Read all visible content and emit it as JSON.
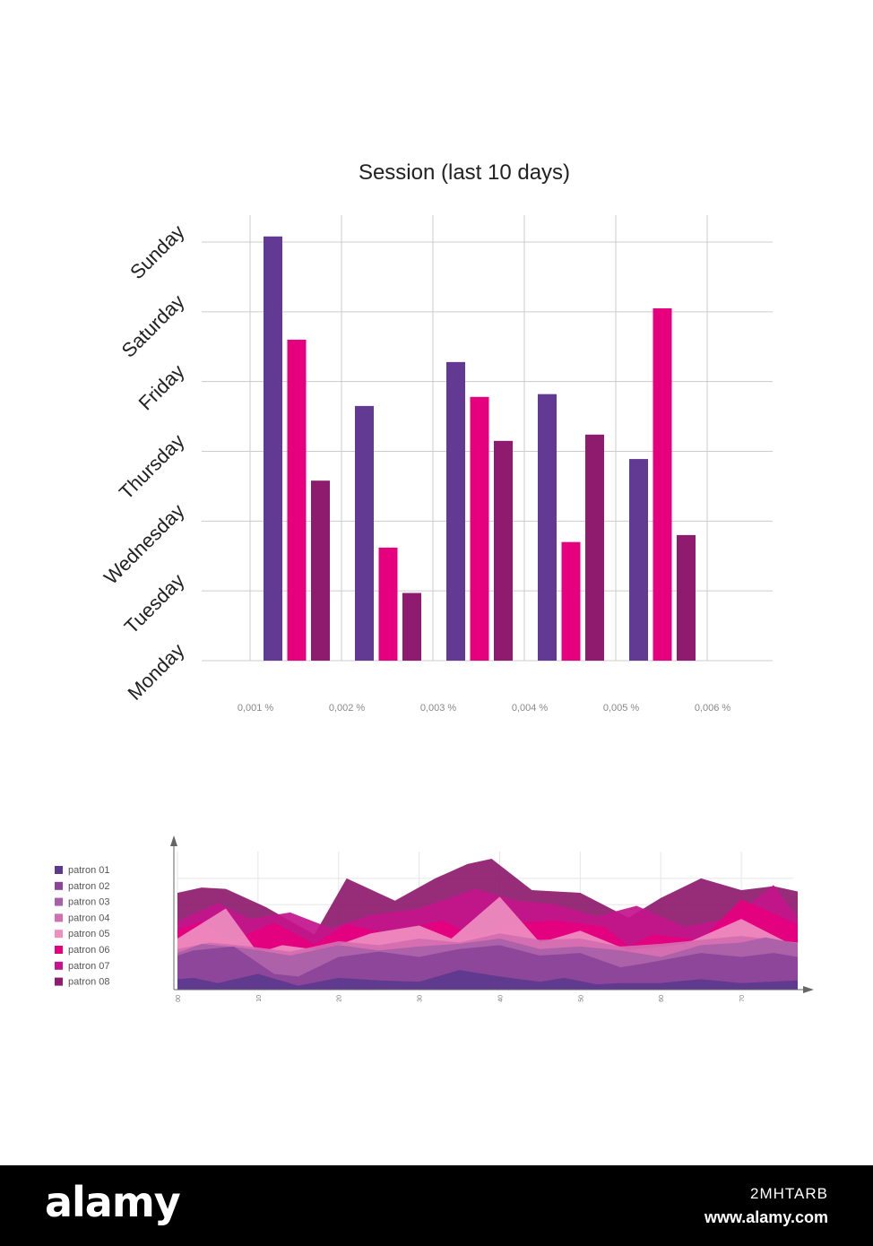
{
  "bar_chart": {
    "title": "Session (last 10 days)"
  },
  "area_chart": {
    "x_tick_labels": [
      "00",
      "10",
      "20",
      "30",
      "40",
      "50",
      "60",
      "70"
    ]
  },
  "colors": {
    "purple": "#623a93",
    "pink": "#e6007e",
    "plum": "#8e1b6d",
    "grid": "#cccccc"
  },
  "chart_data": [
    {
      "type": "bar",
      "title": "Session (last 10 days)",
      "categories": [
        "0,001 %",
        "0,002 %",
        "0,003 %",
        "0,004 %",
        "0,005 %",
        "0,006 %"
      ],
      "y_tick_labels": [
        "Monday",
        "Tuesday",
        "Wednesday",
        "Thursday",
        "Friday",
        "Saturday",
        "Sunday"
      ],
      "ylim": [
        0,
        6
      ],
      "grid": true,
      "series": [
        {
          "color": "#623a93",
          "values": [
            6.08,
            3.65,
            4.28,
            3.82,
            2.89,
            null
          ]
        },
        {
          "color": "#e6007e",
          "values": [
            4.6,
            1.62,
            3.78,
            1.7,
            5.05,
            null
          ]
        },
        {
          "color": "#8e1b6d",
          "values": [
            2.58,
            0.97,
            3.15,
            3.24,
            1.8,
            null
          ]
        }
      ]
    },
    {
      "type": "area",
      "legend_position": "left",
      "x_tick_labels": [
        "00",
        "10",
        "20",
        "30",
        "40",
        "50",
        "60",
        "70"
      ],
      "xlim": [
        0,
        77
      ],
      "ylim": [
        0,
        10
      ],
      "series": [
        {
          "name": "patron 01",
          "color": "#5b3a8e",
          "x": [
            0,
            2,
            5,
            10,
            15,
            20,
            25,
            30,
            35,
            40,
            45,
            48,
            52,
            55,
            60,
            65,
            70,
            77
          ],
          "values": [
            0.8,
            0.9,
            0.5,
            1.2,
            0.3,
            0.9,
            0.7,
            0.6,
            1.5,
            1.0,
            0.6,
            0.9,
            0.4,
            0.5,
            0.5,
            0.8,
            0.5,
            0.7
          ]
        },
        {
          "name": "patron 02",
          "color": "#8a4499",
          "x": [
            0,
            2,
            7,
            12,
            15,
            20,
            25,
            30,
            35,
            40,
            45,
            50,
            55,
            58,
            65,
            70,
            74,
            77
          ],
          "values": [
            2.6,
            3.0,
            3.3,
            1.2,
            1.0,
            2.5,
            2.9,
            2.5,
            3.1,
            3.4,
            2.6,
            2.8,
            1.7,
            2.0,
            2.8,
            2.5,
            2.8,
            2.5
          ]
        },
        {
          "name": "patron 03",
          "color": "#a860a8",
          "x": [
            0,
            3,
            8,
            14,
            20,
            25,
            30,
            35,
            40,
            45,
            50,
            55,
            60,
            65,
            70,
            73,
            77
          ],
          "values": [
            2.8,
            3.5,
            3.2,
            2.6,
            3.4,
            3.0,
            3.3,
            3.5,
            3.9,
            3.1,
            3.3,
            3.0,
            2.5,
            3.4,
            3.6,
            4.0,
            3.5
          ]
        },
        {
          "name": "patron 04",
          "color": "#d36eb0",
          "x": [
            0,
            4,
            9,
            14,
            20,
            25,
            30,
            35,
            40,
            45,
            50,
            55,
            60,
            65,
            70,
            77
          ],
          "values": [
            3.1,
            3.6,
            3.3,
            2.9,
            3.7,
            3.4,
            3.9,
            3.6,
            4.3,
            3.8,
            3.9,
            3.3,
            3.5,
            3.8,
            4.1,
            3.6
          ]
        },
        {
          "name": "patron 05",
          "color": "#ee8fc0",
          "x": [
            0,
            6,
            10,
            13,
            18,
            24,
            30,
            34,
            40,
            45,
            50,
            56,
            63,
            70,
            77
          ],
          "values": [
            3.9,
            6.2,
            2.8,
            3.4,
            3.0,
            4.3,
            4.9,
            3.9,
            7.1,
            3.6,
            4.5,
            3.0,
            3.5,
            5.4,
            3.2
          ]
        },
        {
          "name": "patron 06",
          "color": "#e6007e",
          "x": [
            0,
            3,
            7,
            12,
            17,
            21,
            26,
            33,
            37,
            42,
            47,
            53,
            56,
            59,
            65,
            70,
            77
          ],
          "values": [
            4.6,
            5.2,
            3.8,
            5.1,
            3.5,
            5.0,
            4.3,
            5.3,
            4.0,
            5.1,
            5.3,
            4.8,
            3.3,
            4.2,
            3.8,
            6.9,
            5.0
          ]
        },
        {
          "name": "patron 07",
          "color": "#c4138c",
          "x": [
            0,
            5,
            9,
            14,
            19,
            24,
            30,
            37,
            42,
            47,
            52,
            57,
            63,
            69,
            74,
            77
          ],
          "values": [
            5.2,
            6.6,
            5.4,
            5.9,
            4.7,
            5.7,
            6.2,
            7.7,
            6.8,
            6.5,
            5.6,
            6.4,
            4.8,
            5.5,
            8.0,
            5.5
          ]
        },
        {
          "name": "patron 08",
          "color": "#8e1b6d",
          "x": [
            0,
            3,
            6,
            11,
            17,
            21,
            27,
            32,
            36,
            39,
            44,
            50,
            56,
            60,
            65,
            70,
            74,
            77
          ],
          "values": [
            7.4,
            7.8,
            7.7,
            6.3,
            4.2,
            8.5,
            6.8,
            8.5,
            9.6,
            10.0,
            7.6,
            7.4,
            5.5,
            7.0,
            8.5,
            7.6,
            7.9,
            7.5
          ]
        }
      ]
    }
  ],
  "watermark": {
    "logo": "alamy",
    "image_id": "2MHTARB",
    "url": "www.alamy.com"
  }
}
